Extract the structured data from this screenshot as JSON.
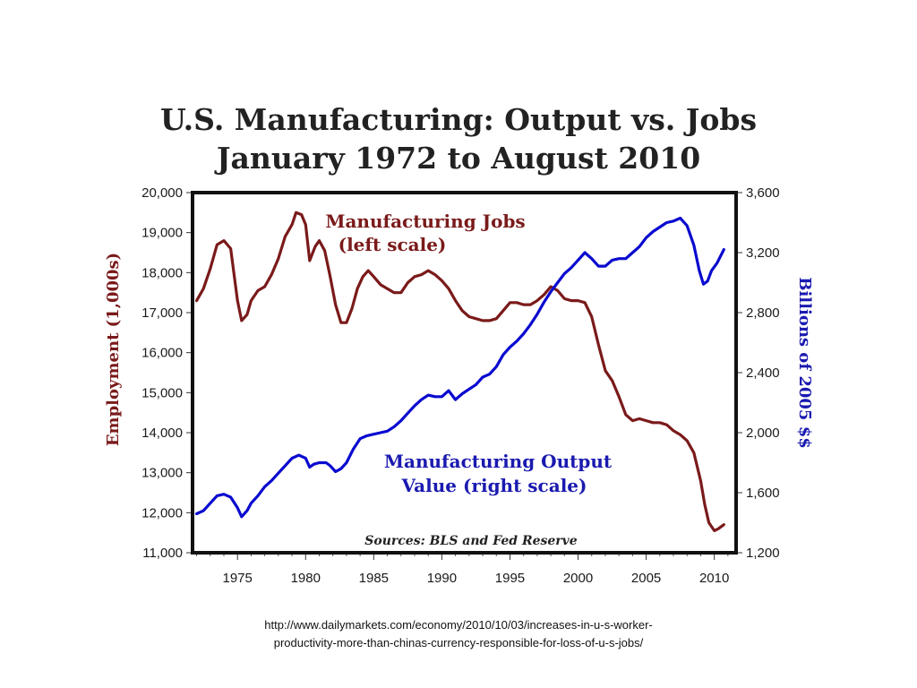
{
  "chart_data": {
    "type": "line",
    "title": "U.S. Manufacturing: Output vs. Jobs",
    "subtitle": "January 1972 to August 2010",
    "ylabel_left": "Employment (1,000s)",
    "ylabel_right": "Billions of 2005 $$",
    "xlim": [
      1971.7,
      2011.6
    ],
    "ylim_left": [
      11000,
      20000
    ],
    "ylim_right": [
      1200,
      3600
    ],
    "x_ticks": [
      1975,
      1980,
      1985,
      1990,
      1995,
      2000,
      2005,
      2010
    ],
    "y_ticks_left": [
      "11,000",
      "12,000",
      "13,000",
      "14,000",
      "15,000",
      "16,000",
      "17,000",
      "18,000",
      "19,000",
      "20,000"
    ],
    "y_ticks_right": [
      "1,200",
      "1,600",
      "2,000",
      "2,400",
      "2,800",
      "3,200",
      "3,600"
    ],
    "grid": false,
    "legend": "none",
    "annotations": {
      "jobs": [
        "Manufacturing Jobs",
        "(left scale)"
      ],
      "output": [
        "Manufacturing Output",
        "Value (right scale)"
      ],
      "sources": "Sources: BLS and Fed Reserve"
    },
    "series": [
      {
        "name": "Manufacturing Jobs",
        "axis": "left",
        "color": "#7a1a1a",
        "x": [
          1972.0,
          1972.5,
          1973.0,
          1973.5,
          1974.0,
          1974.5,
          1975.0,
          1975.3,
          1975.7,
          1976.0,
          1976.5,
          1977.0,
          1977.5,
          1978.0,
          1978.5,
          1979.0,
          1979.3,
          1979.7,
          1980.0,
          1980.3,
          1980.7,
          1981.0,
          1981.4,
          1981.8,
          1982.2,
          1982.6,
          1983.0,
          1983.4,
          1983.8,
          1984.2,
          1984.6,
          1985.0,
          1985.5,
          1986.0,
          1986.5,
          1987.0,
          1987.5,
          1988.0,
          1988.5,
          1989.0,
          1989.5,
          1990.0,
          1990.5,
          1991.0,
          1991.5,
          1992.0,
          1992.5,
          1993.0,
          1993.5,
          1994.0,
          1994.5,
          1995.0,
          1995.5,
          1996.0,
          1996.5,
          1997.0,
          1997.5,
          1998.0,
          1998.5,
          1999.0,
          1999.5,
          2000.0,
          2000.5,
          2001.0,
          2001.5,
          2002.0,
          2002.5,
          2003.0,
          2003.5,
          2004.0,
          2004.5,
          2005.0,
          2005.5,
          2006.0,
          2006.5,
          2007.0,
          2007.5,
          2008.0,
          2008.5,
          2009.0,
          2009.3,
          2009.6,
          2010.0,
          2010.3,
          2010.7
        ],
        "values": [
          17300,
          17600,
          18100,
          18700,
          18800,
          18600,
          17300,
          16800,
          16950,
          17300,
          17550,
          17650,
          17950,
          18350,
          18900,
          19200,
          19500,
          19450,
          19200,
          18300,
          18650,
          18800,
          18550,
          17900,
          17200,
          16750,
          16750,
          17100,
          17600,
          17900,
          18050,
          17900,
          17700,
          17600,
          17500,
          17500,
          17750,
          17900,
          17950,
          18050,
          17950,
          17800,
          17600,
          17300,
          17050,
          16900,
          16850,
          16800,
          16800,
          16850,
          17050,
          17250,
          17250,
          17200,
          17200,
          17300,
          17450,
          17650,
          17550,
          17350,
          17300,
          17300,
          17250,
          16900,
          16200,
          15550,
          15300,
          14900,
          14450,
          14300,
          14350,
          14300,
          14250,
          14250,
          14200,
          14050,
          13950,
          13800,
          13500,
          12800,
          12200,
          11750,
          11550,
          11600,
          11700
        ]
      },
      {
        "name": "Manufacturing Output Value",
        "axis": "right",
        "color": "#0a0ad0",
        "x": [
          1972.0,
          1972.5,
          1973.0,
          1973.5,
          1974.0,
          1974.5,
          1975.0,
          1975.3,
          1975.7,
          1976.0,
          1976.5,
          1977.0,
          1977.5,
          1978.0,
          1978.5,
          1979.0,
          1979.5,
          1980.0,
          1980.3,
          1980.6,
          1981.0,
          1981.5,
          1981.8,
          1982.2,
          1982.6,
          1983.0,
          1983.5,
          1984.0,
          1984.5,
          1985.0,
          1985.5,
          1986.0,
          1986.5,
          1987.0,
          1987.5,
          1988.0,
          1988.5,
          1989.0,
          1989.5,
          1990.0,
          1990.5,
          1991.0,
          1991.5,
          1992.0,
          1992.5,
          1993.0,
          1993.5,
          1994.0,
          1994.5,
          1995.0,
          1995.5,
          1996.0,
          1996.5,
          1997.0,
          1997.5,
          1998.0,
          1998.5,
          1999.0,
          1999.5,
          2000.0,
          2000.5,
          2001.0,
          2001.5,
          2002.0,
          2002.5,
          2003.0,
          2003.5,
          2004.0,
          2004.5,
          2005.0,
          2005.5,
          2006.0,
          2006.5,
          2007.0,
          2007.5,
          2008.0,
          2008.5,
          2008.9,
          2009.2,
          2009.5,
          2009.8,
          2010.2,
          2010.7
        ],
        "values": [
          1460,
          1480,
          1530,
          1580,
          1590,
          1570,
          1500,
          1440,
          1480,
          1530,
          1580,
          1640,
          1680,
          1730,
          1780,
          1830,
          1850,
          1830,
          1770,
          1790,
          1800,
          1800,
          1780,
          1740,
          1760,
          1800,
          1890,
          1960,
          1980,
          1990,
          2000,
          2010,
          2040,
          2080,
          2130,
          2180,
          2220,
          2250,
          2240,
          2240,
          2280,
          2220,
          2260,
          2290,
          2320,
          2370,
          2390,
          2440,
          2520,
          2570,
          2610,
          2660,
          2720,
          2790,
          2870,
          2940,
          3000,
          3060,
          3100,
          3150,
          3200,
          3160,
          3110,
          3110,
          3150,
          3160,
          3160,
          3200,
          3240,
          3300,
          3340,
          3370,
          3400,
          3410,
          3430,
          3380,
          3250,
          3080,
          2990,
          3010,
          3080,
          3130,
          3220
        ]
      }
    ]
  },
  "source_url": {
    "line1": "http://www.dailymarkets.com/economy/2010/10/03/increases-in-u-s-worker-",
    "line2": "productivity-more-than-chinas-currency-responsible-for-loss-of-u-s-jobs/"
  }
}
